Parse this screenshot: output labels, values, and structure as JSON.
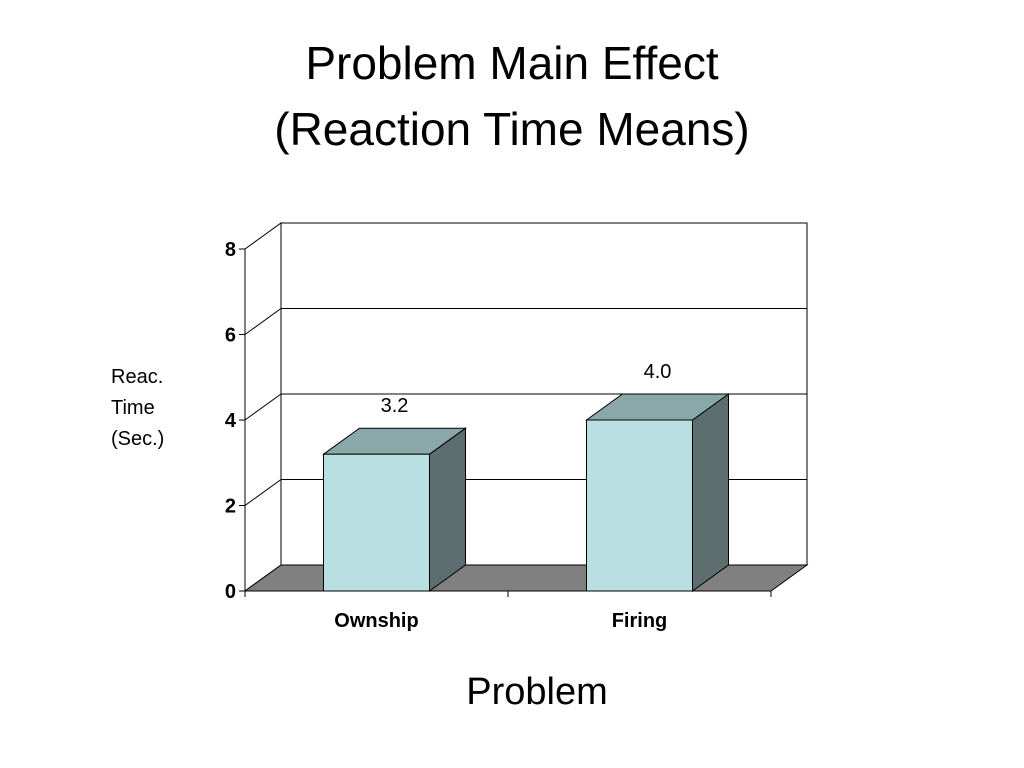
{
  "title_lines": [
    "Problem Main Effect",
    "(Reaction Time Means)"
  ],
  "ylabel_lines": [
    "Reac.",
    "Time",
    "(Sec.)"
  ],
  "colors": {
    "bar_front": "#badfe3",
    "bar_top": "#8aa7a9",
    "bar_side": "#5d6e70",
    "floor": "#808080",
    "stroke": "#000000"
  },
  "chart_data": {
    "type": "bar",
    "title": "Problem Main Effect (Reaction Time Means)",
    "xlabel": "Problem",
    "ylabel": "Reac. Time (Sec.)",
    "categories": [
      "Ownship",
      "Firing"
    ],
    "values": [
      3.2,
      4.0
    ],
    "value_labels": [
      "3.2",
      "4.0"
    ],
    "ylim": [
      0,
      8
    ],
    "yticks": [
      0,
      2,
      4,
      6,
      8
    ],
    "grid": true,
    "style": "3d",
    "legend": "none"
  }
}
